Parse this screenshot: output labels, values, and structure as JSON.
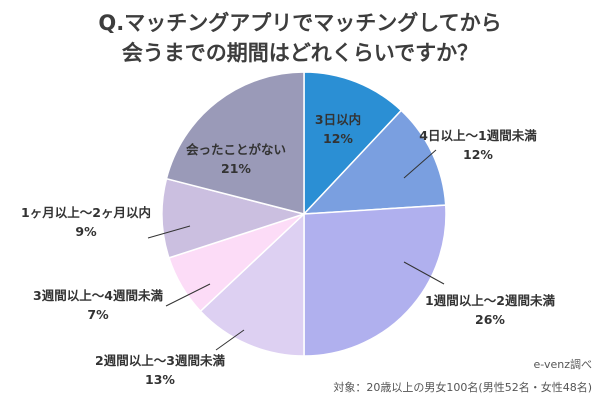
{
  "chart_data": {
    "type": "pie",
    "title_lines": [
      "Q.マッチングアプリでマッチングしてから",
      "会うまでの期間はどれくらいですか？"
    ],
    "slices": [
      {
        "label": "3日以内",
        "value": 12,
        "value_label": "12%",
        "color": "#2b8fd4"
      },
      {
        "label": "4日以上～1週間未満",
        "value": 12,
        "value_label": "12%",
        "color": "#7a9fe0"
      },
      {
        "label": "1週間以上～2週間未満",
        "value": 26,
        "value_label": "26%",
        "color": "#b0b0ee"
      },
      {
        "label": "2週間以上～3週間未満",
        "value": 13,
        "value_label": "13%",
        "color": "#ddd0f2"
      },
      {
        "label": "3週間以上～4週間未満",
        "value": 7,
        "value_label": "7%",
        "color": "#fcdcf7"
      },
      {
        "label": "1ヶ月以上～2ヶ月以内",
        "value": 9,
        "value_label": "9%",
        "color": "#cbbfe0"
      },
      {
        "label": "会ったことがない",
        "value": 21,
        "value_label": "21%",
        "color": "#9a9ab8"
      }
    ],
    "credit": "e-venz調べ",
    "note": "対象：20歳以上の男女100名(男性52名・女性48名)"
  }
}
